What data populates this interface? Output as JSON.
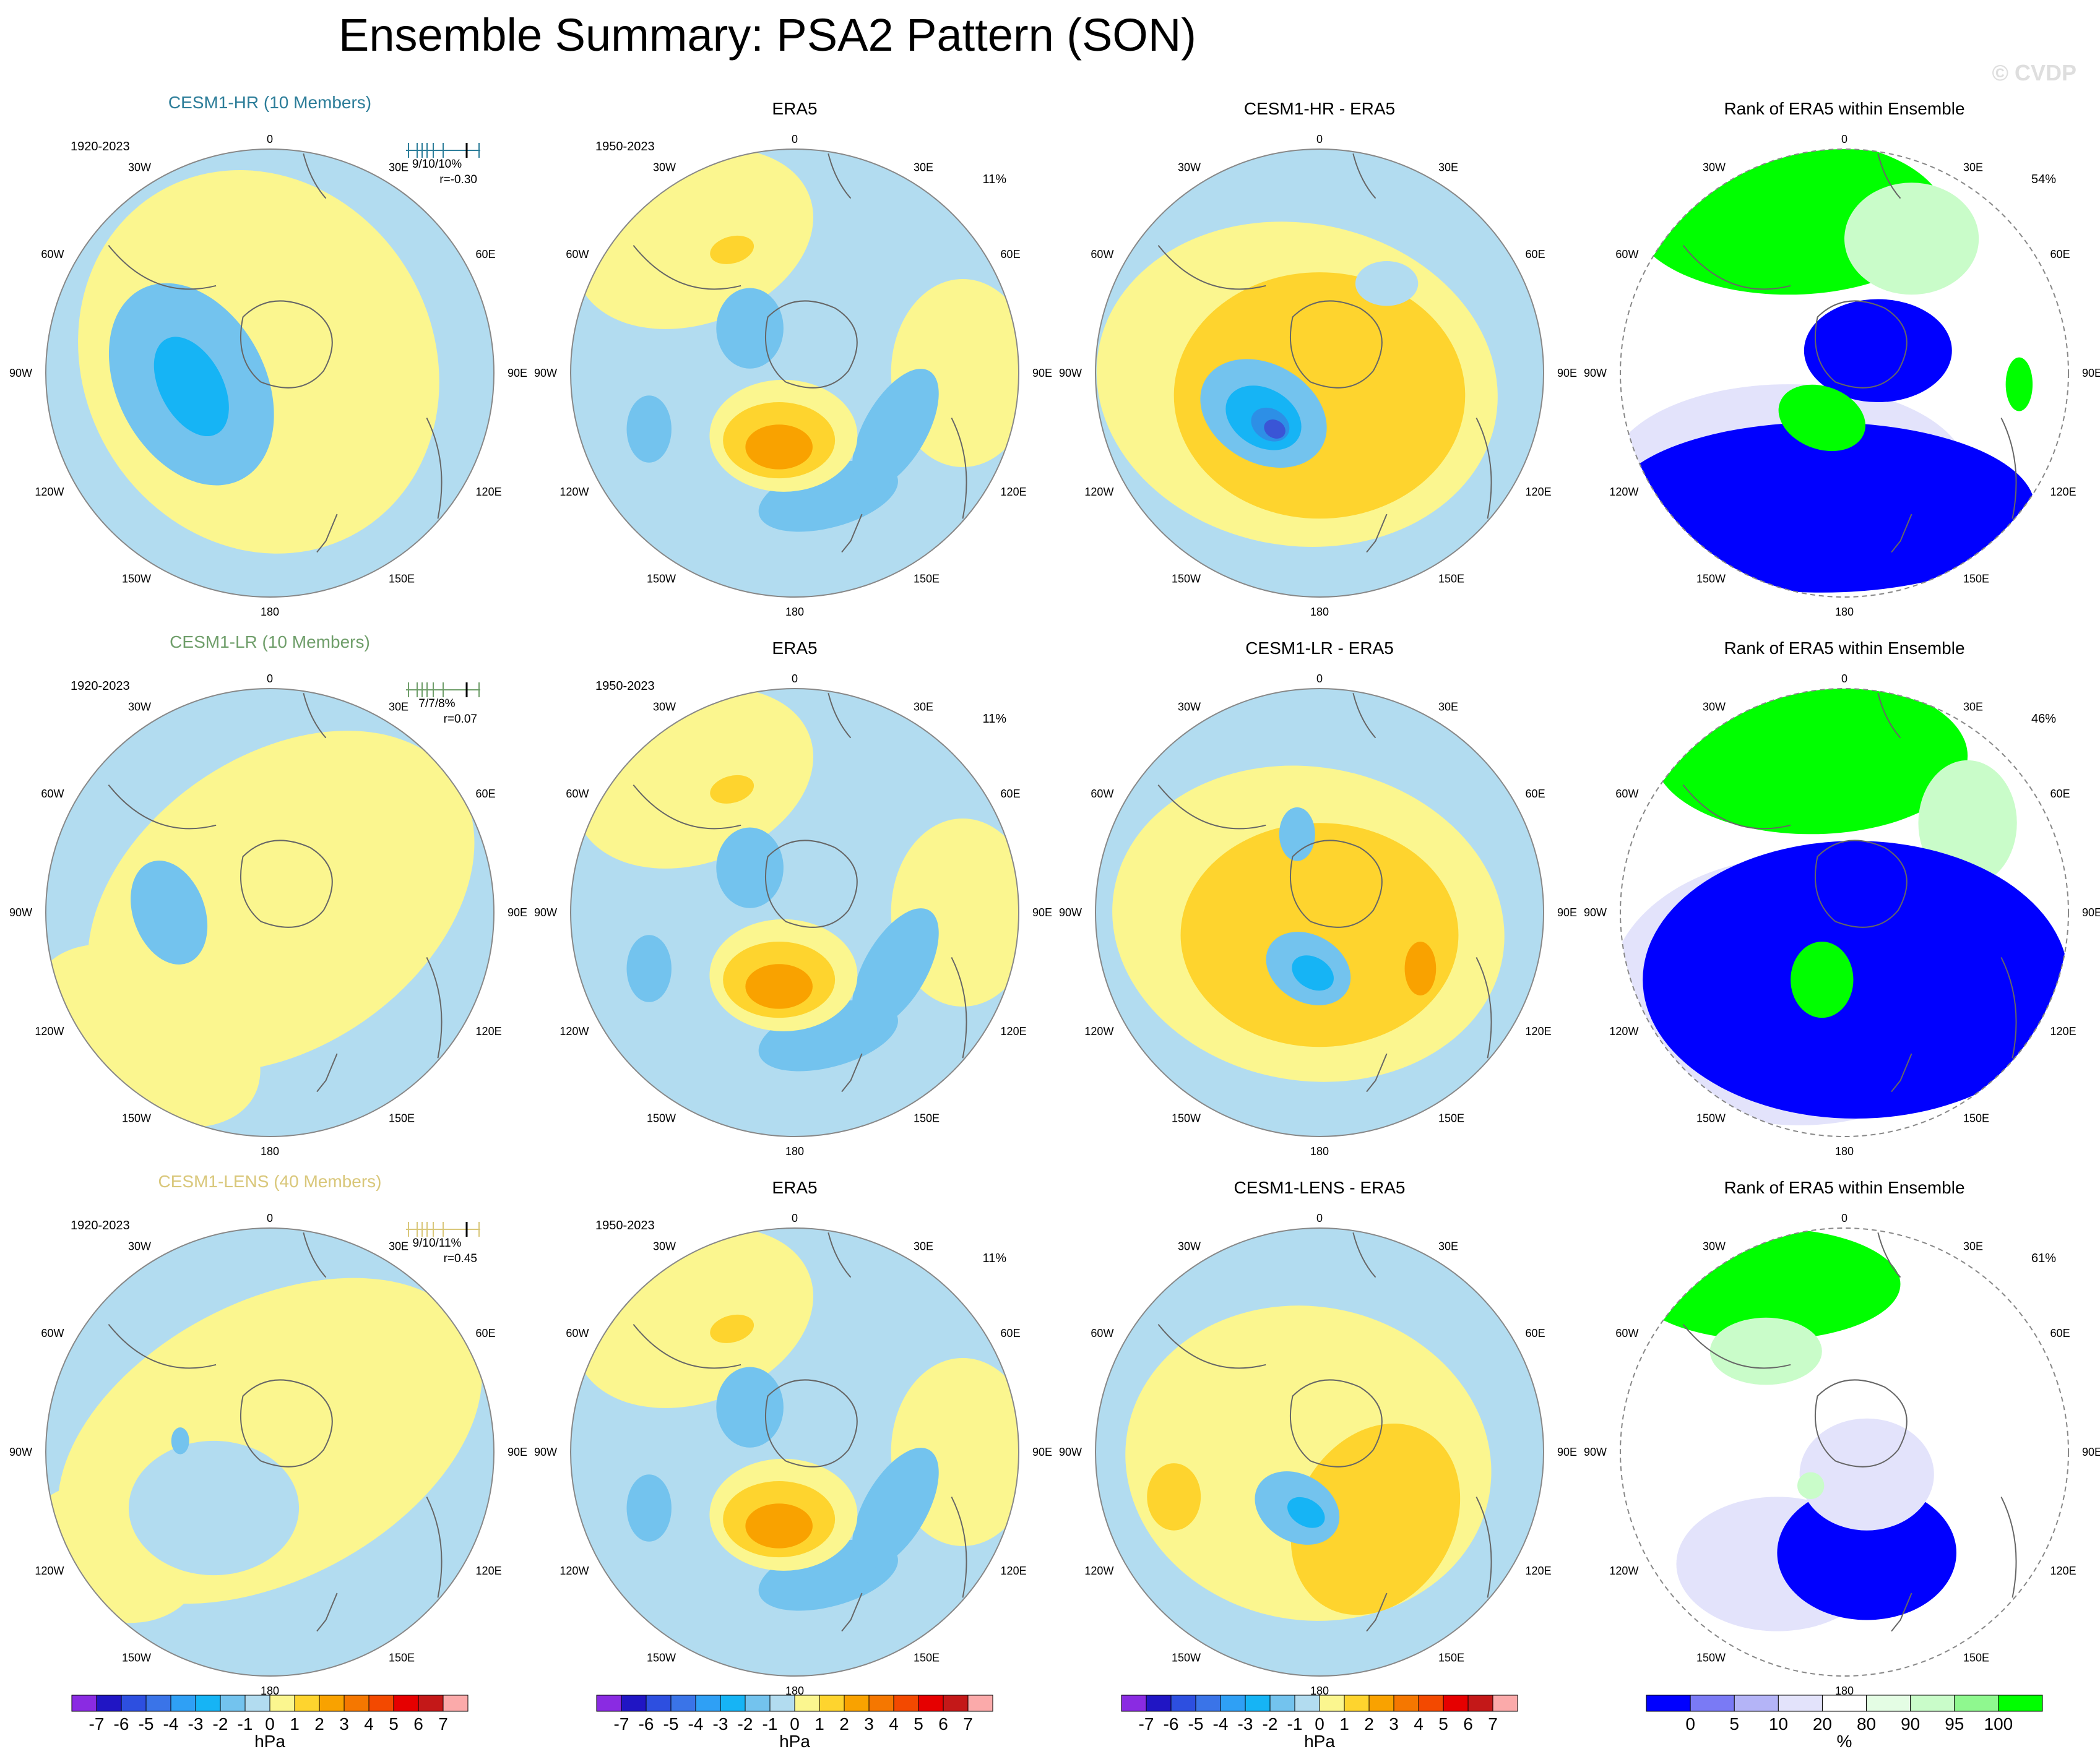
{
  "page": {
    "title": "Ensemble Summary: PSA2 Pattern (SON)",
    "watermark": "© CVDP"
  },
  "colors": {
    "hr": "#2c7d99",
    "lr": "#6f9e6a",
    "lens": "#d9c77a",
    "neg_light": "#b2dcf0",
    "neg_mid": "#73c3ee",
    "neg_dark": "#16b4f5",
    "neg_deeper": "#2d8fe6",
    "neg_darkest": "#3a55d6",
    "pos_light": "#fbf68f",
    "pos_mid": "#fed42e",
    "pos_dark": "#f9a200",
    "rank_blue": "#0000ff",
    "rank_lavender": "#e3e3fb",
    "rank_green": "#00ff00",
    "rank_lightgreen": "#c9fcc9",
    "coast": "#666666"
  },
  "rows": [
    {
      "model_title": "CESM1-HR (10 Members)",
      "color_key": "hr",
      "model_period": "1920-2023",
      "stats": "9/10/10%",
      "r_value": "r=-0.30",
      "obs_title": "ERA5",
      "obs_period": "1950-2023",
      "obs_pct": "11%",
      "diff_title": "CESM1-HR - ERA5",
      "rank_title": "Rank of ERA5 within Ensemble",
      "rank_pct": "54%"
    },
    {
      "model_title": "CESM1-LR (10 Members)",
      "color_key": "lr",
      "model_period": "1920-2023",
      "stats": "7/7/8%",
      "r_value": "r=0.07",
      "obs_title": "ERA5",
      "obs_period": "1950-2023",
      "obs_pct": "11%",
      "diff_title": "CESM1-LR - ERA5",
      "rank_title": "Rank of ERA5 within Ensemble",
      "rank_pct": "46%"
    },
    {
      "model_title": "CESM1-LENS (40 Members)",
      "color_key": "lens",
      "model_period": "1920-2023",
      "stats": "9/10/11%",
      "r_value": "r=0.45",
      "obs_title": "ERA5",
      "obs_period": "1950-2023",
      "obs_pct": "11%",
      "diff_title": "CESM1-LENS - ERA5",
      "rank_title": "Rank of ERA5 within Ensemble",
      "rank_pct": "61%"
    }
  ],
  "longitude_labels": [
    "0",
    "30E",
    "60E",
    "90E",
    "120E",
    "150E",
    "180",
    "150W",
    "120W",
    "90W",
    "60W",
    "30W"
  ],
  "chart_data": [
    {
      "type": "heatmap",
      "name": "sea level pressure anomaly colorbar",
      "units": "hPa",
      "levels": [
        "-7",
        "-6",
        "-5",
        "-4",
        "-3",
        "-2",
        "-1",
        "0",
        "1",
        "2",
        "3",
        "4",
        "5",
        "6",
        "7"
      ],
      "colors": [
        "#8a2be2",
        "#2015c4",
        "#2d4fe0",
        "#3a74e8",
        "#2fa0f5",
        "#16b4f5",
        "#73c3ee",
        "#b2dcf0",
        "#fbf68f",
        "#fed42e",
        "#f9a200",
        "#f57700",
        "#f34900",
        "#e60000",
        "#c41818",
        "#fbaaaa"
      ]
    },
    {
      "type": "heatmap",
      "name": "rank colorbar",
      "units": "%",
      "levels": [
        "0",
        "5",
        "10",
        "20",
        "80",
        "90",
        "95",
        "100"
      ],
      "colors": [
        "#0000ff",
        "#7a7af5",
        "#b4b4f7",
        "#e3e3fb",
        "#ffffff",
        "#e4fde4",
        "#c9fcc9",
        "#8ff88f",
        "#00ff00"
      ]
    }
  ]
}
